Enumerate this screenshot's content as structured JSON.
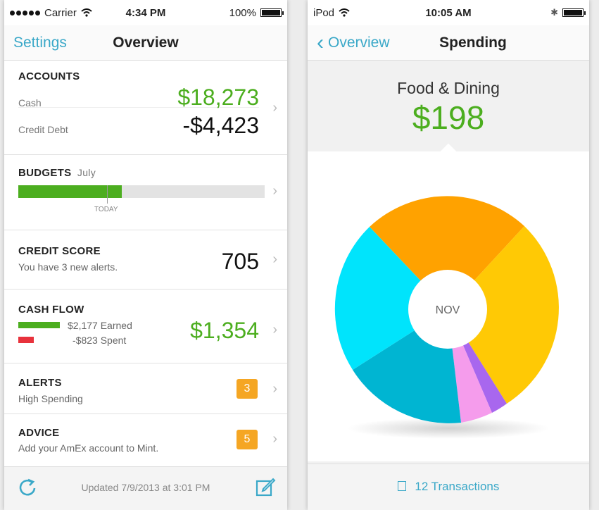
{
  "left": {
    "status": {
      "carrier": "Carrier",
      "time": "4:34 PM",
      "battery": "100%"
    },
    "nav": {
      "back": "Settings",
      "title": "Overview"
    },
    "accounts": {
      "title": "ACCOUNTS",
      "cash_label": "Cash",
      "cash_value": "$18,273",
      "debt_label": "Credit Debt",
      "debt_value": "-$4,423"
    },
    "budgets": {
      "title": "BUDGETS",
      "month": "July",
      "today_label": "TODAY",
      "progress": 0.42
    },
    "credit": {
      "title": "CREDIT SCORE",
      "sub": "You have 3 new alerts.",
      "value": "705"
    },
    "cashflow": {
      "title": "CASH FLOW",
      "earned": "$2,177 Earned",
      "spent": "-$823 Spent",
      "value": "$1,354"
    },
    "alerts": {
      "title": "ALERTS",
      "sub": "High Spending",
      "count": "3"
    },
    "advice": {
      "title": "ADVICE",
      "sub": "Add your AmEx account to Mint.",
      "count": "5"
    },
    "footer": {
      "updated": "Updated 7/9/2013 at 3:01 PM"
    }
  },
  "right": {
    "status": {
      "device": "iPod",
      "time": "10:05 AM"
    },
    "nav": {
      "back": "Overview",
      "title": "Spending"
    },
    "category": {
      "name": "Food & Dining",
      "amount": "$198"
    },
    "pie": {
      "center_label": "NOV"
    },
    "footer": {
      "transactions": "12 Transactions"
    }
  },
  "colors": {
    "accent": "#3aa8c8",
    "green": "#4cae1f",
    "orange_badge": "#f5a623",
    "red": "#e8323c"
  }
}
